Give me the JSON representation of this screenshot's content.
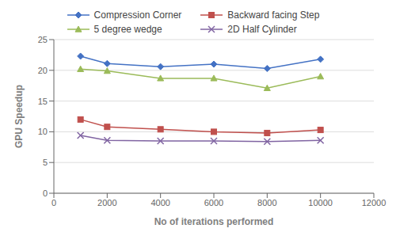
{
  "chart_data": {
    "type": "line",
    "x": [
      1000,
      2000,
      4000,
      6000,
      8000,
      10000
    ],
    "series": [
      {
        "name": "Compression Corner",
        "color": "#4472C4",
        "marker": "diamond",
        "values": [
          22.3,
          21.1,
          20.6,
          21.0,
          20.3,
          21.8
        ]
      },
      {
        "name": "Backward facing Step",
        "color": "#C0504D",
        "marker": "square",
        "values": [
          12.0,
          10.8,
          10.4,
          10.0,
          9.8,
          10.3
        ]
      },
      {
        "name": "5 degree wedge",
        "color": "#9BBB59",
        "marker": "triangle",
        "values": [
          20.2,
          19.9,
          18.7,
          18.7,
          17.1,
          19.0
        ]
      },
      {
        "name": "2D Half Cylinder",
        "color": "#8064A2",
        "marker": "x",
        "values": [
          9.4,
          8.6,
          8.5,
          8.5,
          8.4,
          8.6
        ]
      }
    ],
    "xlabel": "No of iterations performed",
    "ylabel": "GPU Speedup",
    "xlim": [
      0,
      12000
    ],
    "ylim": [
      0,
      25
    ],
    "xticks": [
      0,
      2000,
      4000,
      6000,
      8000,
      10000,
      12000
    ],
    "yticks": [
      0,
      5,
      10,
      15,
      20,
      25
    ],
    "grid": "y",
    "legend": "top"
  }
}
